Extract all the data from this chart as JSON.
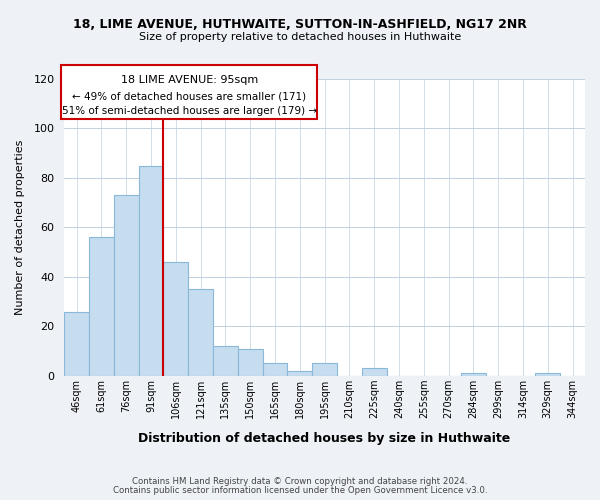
{
  "title_line1": "18, LIME AVENUE, HUTHWAITE, SUTTON-IN-ASHFIELD, NG17 2NR",
  "title_line2": "Size of property relative to detached houses in Huthwaite",
  "xlabel": "Distribution of detached houses by size in Huthwaite",
  "ylabel": "Number of detached properties",
  "bar_labels": [
    "46sqm",
    "61sqm",
    "76sqm",
    "91sqm",
    "106sqm",
    "121sqm",
    "135sqm",
    "150sqm",
    "165sqm",
    "180sqm",
    "195sqm",
    "210sqm",
    "225sqm",
    "240sqm",
    "255sqm",
    "270sqm",
    "284sqm",
    "299sqm",
    "314sqm",
    "329sqm",
    "344sqm"
  ],
  "bar_heights": [
    26,
    56,
    73,
    85,
    46,
    35,
    12,
    11,
    5,
    2,
    5,
    0,
    3,
    0,
    0,
    0,
    1,
    0,
    0,
    1,
    0
  ],
  "bar_color": "#c5ddef",
  "bar_edge_color": "#8ab8d8",
  "vline_x": 4.0,
  "vline_color": "#cc0000",
  "annotation_line1": "18 LIME AVENUE: 95sqm",
  "annotation_line2": "← 49% of detached houses are smaller (171)",
  "annotation_line3": "51% of semi-detached houses are larger (179) →",
  "annotation_box_color": "#cc0000",
  "ylim": [
    0,
    120
  ],
  "yticks": [
    0,
    20,
    40,
    60,
    80,
    100,
    120
  ],
  "footer_line1": "Contains HM Land Registry data © Crown copyright and database right 2024.",
  "footer_line2": "Contains public sector information licensed under the Open Government Licence v3.0.",
  "bg_color": "#eef2f7",
  "plot_bg_color": "#ffffff",
  "grid_color": "#c0d0e0"
}
